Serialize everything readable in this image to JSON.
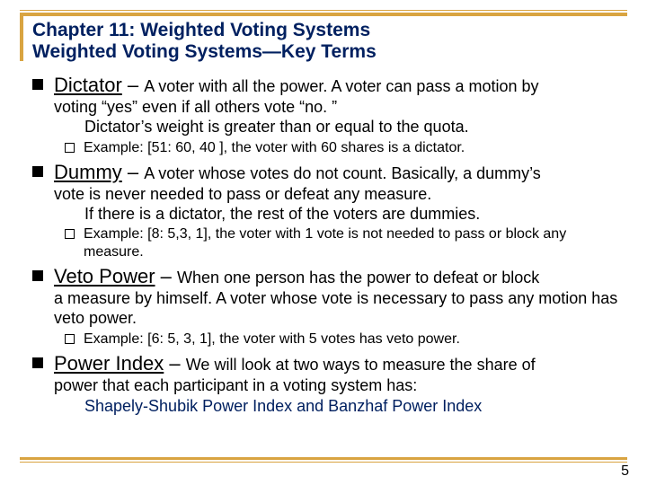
{
  "colors": {
    "accent": "#d9a441",
    "heading": "#002060",
    "text": "#000000",
    "background": "#ffffff"
  },
  "typography": {
    "heading_fontsize": 21,
    "term_name_fontsize": 22,
    "body_fontsize": 18,
    "example_fontsize": 16,
    "heading_weight": "bold"
  },
  "header": {
    "chapter": "Chapter 11:  Weighted Voting Systems",
    "subtitle": "Weighted Voting Systems—Key Terms"
  },
  "terms": [
    {
      "name": "Dictator",
      "dash": " – ",
      "def_first": "A voter with all the power.  A voter can pass a motion by",
      "def_cont": "voting “yes” even if all others vote “no. ”",
      "def_indent": "Dictator’s weight is greater than or equal to the quota.",
      "example": "Example: [51: 60, 40 ], the voter with 60 shares is a dictator."
    },
    {
      "name": "Dummy",
      "dash": " – ",
      "def_first": "A voter whose votes do not count. Basically, a dummy’s",
      "def_cont": "vote is never needed to pass or defeat any measure.",
      "def_indent": "If there is a dictator, the rest of the voters are dummies.",
      "example": "Example: [8: 5,3, 1], the voter with 1 vote is not needed to pass or block any measure."
    },
    {
      "name": "Veto Power",
      "dash": " – ",
      "def_first": "When one person has the power to defeat or block",
      "def_cont": "a measure by himself. A voter whose vote is necessary to pass any motion has veto power.",
      "def_indent": "",
      "example": "Example: [6: 5, 3, 1], the voter with 5 votes has veto power."
    },
    {
      "name": "Power Index",
      "dash": " –  ",
      "def_first": "We will look at two ways to measure the share of",
      "def_cont": "power that each participant in a voting system has:",
      "def_indent": "",
      "example": ""
    }
  ],
  "power_indices_line": "Shapely-Shubik Power Index  and  Banzhaf Power Index",
  "page_number": "5"
}
